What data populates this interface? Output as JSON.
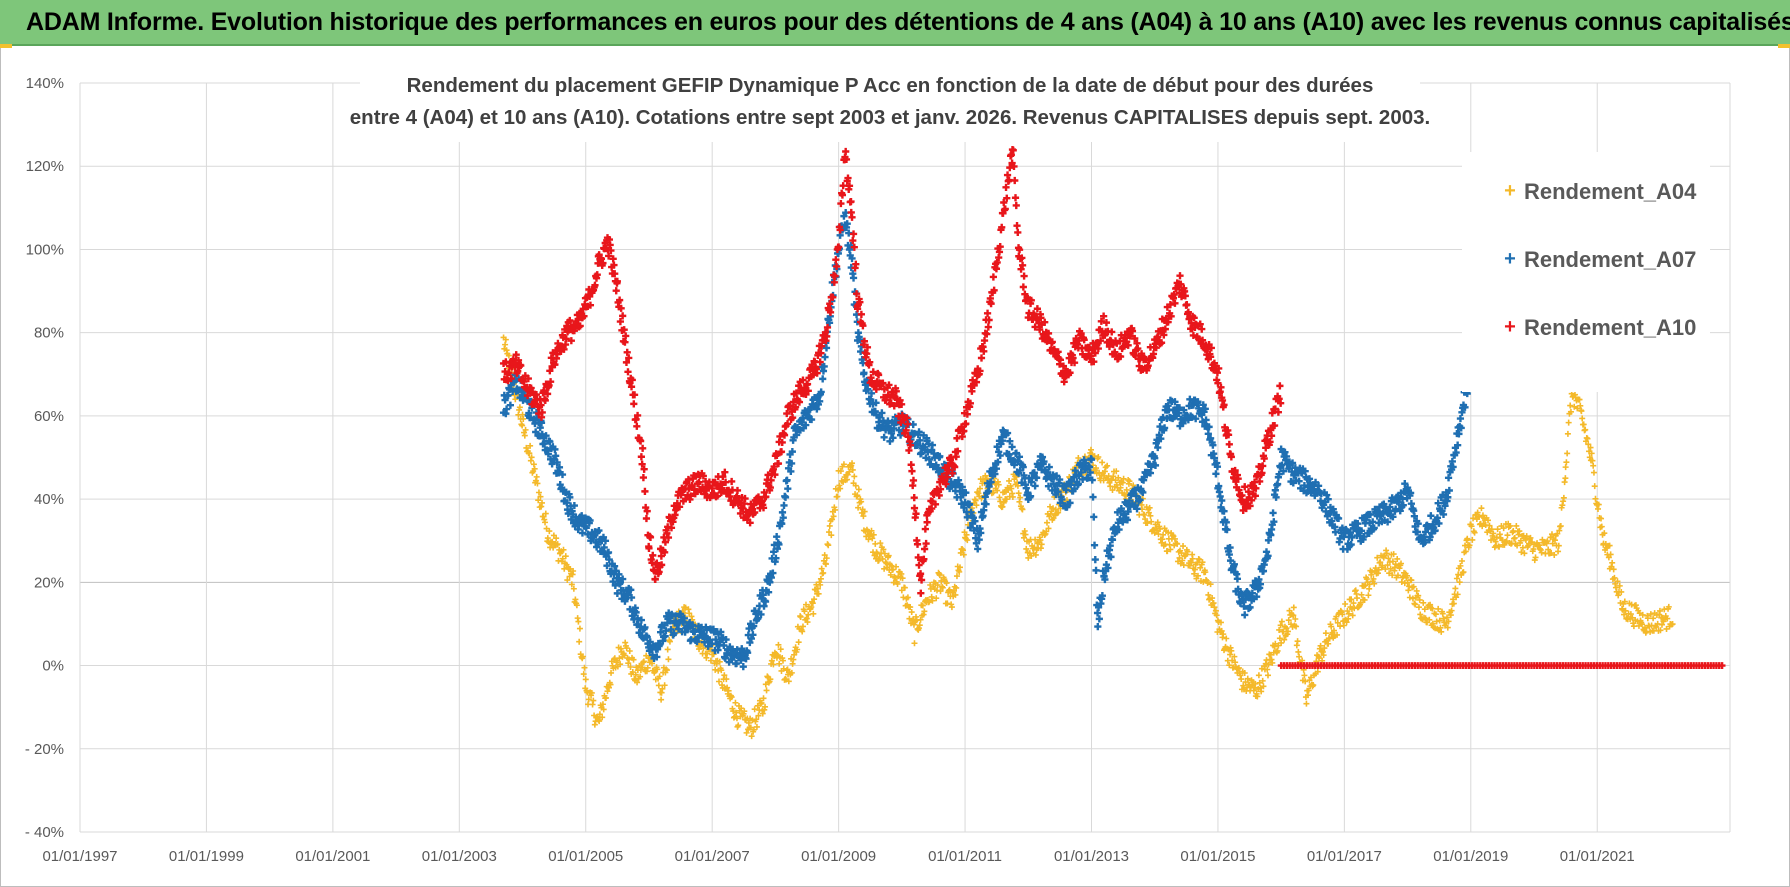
{
  "banner": {
    "title": "ADAM Informe. Evolution historique des performances en euros pour des détentions de 4 ans (A04) à 10 ans (A10) avec les revenus connus capitalisés"
  },
  "chart_data": {
    "type": "scatter",
    "title_line1": "Rendement du placement GEFIP Dynamique P Acc en fonction de la date de début pour des durées",
    "title_line2": "entre 4 (A04) et 10 ans (A10). Cotations entre sept 2003 et janv. 2026. Revenus CAPITALISES depuis sept. 2003.",
    "x_ticks": [
      "01/01/1997",
      "01/01/1999",
      "01/01/2001",
      "01/01/2003",
      "01/01/2005",
      "01/01/2007",
      "01/01/2009",
      "01/01/2011",
      "01/01/2013",
      "01/01/2015",
      "01/01/2017",
      "01/01/2019",
      "01/01/2021"
    ],
    "xlim": [
      1997.0,
      2023.1
    ],
    "y_ticks": [
      "140%",
      "120%",
      "100%",
      "80%",
      "60%",
      "40%",
      "20%",
      "0%",
      "- 20%",
      "- 40%"
    ],
    "ylim": [
      -40,
      140
    ],
    "legend_position": "top-right",
    "colors": {
      "A04": "#f4b92a",
      "A07": "#1f6fb2",
      "A10": "#e8161b",
      "grid": "#d9d9d9",
      "axis_text": "#595959",
      "title_text": "#404040"
    },
    "series": [
      {
        "name": "Rendement_A04",
        "key": "A04",
        "anchors": [
          [
            2003.7,
            78
          ],
          [
            2003.85,
            68
          ],
          [
            2004.0,
            58
          ],
          [
            2004.2,
            45
          ],
          [
            2004.4,
            32
          ],
          [
            2004.6,
            27
          ],
          [
            2004.8,
            20
          ],
          [
            2005.0,
            -5
          ],
          [
            2005.2,
            -14
          ],
          [
            2005.4,
            -2
          ],
          [
            2005.6,
            5
          ],
          [
            2005.8,
            -3
          ],
          [
            2006.0,
            2
          ],
          [
            2006.2,
            -6
          ],
          [
            2006.4,
            10
          ],
          [
            2006.6,
            12
          ],
          [
            2006.8,
            6
          ],
          [
            2007.0,
            3
          ],
          [
            2007.2,
            -5
          ],
          [
            2007.4,
            -12
          ],
          [
            2007.6,
            -15
          ],
          [
            2007.8,
            -10
          ],
          [
            2008.0,
            5
          ],
          [
            2008.2,
            -3
          ],
          [
            2008.4,
            10
          ],
          [
            2008.6,
            15
          ],
          [
            2008.8,
            25
          ],
          [
            2009.0,
            45
          ],
          [
            2009.2,
            47
          ],
          [
            2009.4,
            35
          ],
          [
            2009.6,
            28
          ],
          [
            2009.8,
            24
          ],
          [
            2010.0,
            20
          ],
          [
            2010.2,
            8
          ],
          [
            2010.4,
            16
          ],
          [
            2010.6,
            20
          ],
          [
            2010.8,
            15
          ],
          [
            2011.0,
            30
          ],
          [
            2011.2,
            42
          ],
          [
            2011.4,
            44
          ],
          [
            2011.6,
            40
          ],
          [
            2011.8,
            44
          ],
          [
            2012.0,
            28
          ],
          [
            2012.2,
            30
          ],
          [
            2012.4,
            38
          ],
          [
            2012.6,
            42
          ],
          [
            2012.8,
            48
          ],
          [
            2013.0,
            50
          ],
          [
            2013.2,
            46
          ],
          [
            2013.4,
            44
          ],
          [
            2013.6,
            42
          ],
          [
            2013.8,
            38
          ],
          [
            2014.0,
            34
          ],
          [
            2014.2,
            30
          ],
          [
            2014.4,
            27
          ],
          [
            2014.6,
            24
          ],
          [
            2014.8,
            22
          ],
          [
            2015.0,
            10
          ],
          [
            2015.2,
            2
          ],
          [
            2015.4,
            -4
          ],
          [
            2015.6,
            -6
          ],
          [
            2015.8,
            0
          ],
          [
            2016.0,
            8
          ],
          [
            2016.2,
            12
          ],
          [
            2016.4,
            -8
          ],
          [
            2016.6,
            2
          ],
          [
            2016.8,
            8
          ],
          [
            2017.0,
            12
          ],
          [
            2017.2,
            16
          ],
          [
            2017.4,
            20
          ],
          [
            2017.6,
            26
          ],
          [
            2017.8,
            24
          ],
          [
            2018.0,
            20
          ],
          [
            2018.2,
            14
          ],
          [
            2018.4,
            12
          ],
          [
            2018.6,
            10
          ],
          [
            2018.8,
            20
          ],
          [
            2019.0,
            32
          ],
          [
            2019.2,
            36
          ],
          [
            2019.4,
            30
          ],
          [
            2019.6,
            32
          ],
          [
            2019.8,
            30
          ],
          [
            2020.0,
            28
          ],
          [
            2020.2,
            28
          ],
          [
            2020.4,
            30
          ],
          [
            2020.5,
            48
          ],
          [
            2020.6,
            66
          ],
          [
            2020.75,
            60
          ],
          [
            2020.9,
            50
          ],
          [
            2021.0,
            40
          ],
          [
            2021.1,
            30
          ],
          [
            2021.2,
            26
          ],
          [
            2021.4,
            14
          ],
          [
            2021.6,
            12
          ],
          [
            2021.8,
            10
          ],
          [
            2022.0,
            11
          ],
          [
            2022.2,
            12
          ]
        ]
      },
      {
        "name": "Rendement_A07",
        "key": "A07",
        "anchors": [
          [
            2003.7,
            62
          ],
          [
            2003.9,
            68
          ],
          [
            2004.1,
            62
          ],
          [
            2004.3,
            56
          ],
          [
            2004.5,
            50
          ],
          [
            2004.7,
            40
          ],
          [
            2004.9,
            34
          ],
          [
            2005.1,
            32
          ],
          [
            2005.3,
            28
          ],
          [
            2005.5,
            20
          ],
          [
            2005.7,
            16
          ],
          [
            2005.9,
            8
          ],
          [
            2006.1,
            4
          ],
          [
            2006.3,
            10
          ],
          [
            2006.5,
            10
          ],
          [
            2006.7,
            8
          ],
          [
            2006.9,
            7
          ],
          [
            2007.1,
            6
          ],
          [
            2007.3,
            3
          ],
          [
            2007.5,
            2
          ],
          [
            2007.7,
            12
          ],
          [
            2007.9,
            20
          ],
          [
            2008.1,
            35
          ],
          [
            2008.3,
            55
          ],
          [
            2008.5,
            60
          ],
          [
            2008.7,
            65
          ],
          [
            2008.9,
            90
          ],
          [
            2009.0,
            100
          ],
          [
            2009.1,
            108
          ],
          [
            2009.2,
            98
          ],
          [
            2009.3,
            80
          ],
          [
            2009.4,
            70
          ],
          [
            2009.6,
            60
          ],
          [
            2009.8,
            56
          ],
          [
            2010.0,
            58
          ],
          [
            2010.2,
            55
          ],
          [
            2010.4,
            52
          ],
          [
            2010.6,
            48
          ],
          [
            2010.8,
            44
          ],
          [
            2011.0,
            40
          ],
          [
            2011.2,
            30
          ],
          [
            2011.4,
            45
          ],
          [
            2011.6,
            55
          ],
          [
            2011.8,
            50
          ],
          [
            2012.0,
            42
          ],
          [
            2012.2,
            48
          ],
          [
            2012.4,
            44
          ],
          [
            2012.6,
            40
          ],
          [
            2012.8,
            46
          ],
          [
            2013.0,
            48
          ],
          [
            2013.1,
            10
          ],
          [
            2013.2,
            22
          ],
          [
            2013.4,
            34
          ],
          [
            2013.6,
            38
          ],
          [
            2013.8,
            42
          ],
          [
            2014.0,
            50
          ],
          [
            2014.2,
            62
          ],
          [
            2014.4,
            60
          ],
          [
            2014.6,
            62
          ],
          [
            2014.8,
            60
          ],
          [
            2015.0,
            45
          ],
          [
            2015.2,
            25
          ],
          [
            2015.4,
            14
          ],
          [
            2015.6,
            18
          ],
          [
            2015.8,
            28
          ],
          [
            2016.0,
            50
          ],
          [
            2016.2,
            46
          ],
          [
            2016.4,
            44
          ],
          [
            2016.6,
            42
          ],
          [
            2016.8,
            36
          ],
          [
            2017.0,
            30
          ],
          [
            2017.2,
            32
          ],
          [
            2017.4,
            34
          ],
          [
            2017.6,
            36
          ],
          [
            2017.8,
            38
          ],
          [
            2018.0,
            42
          ],
          [
            2018.2,
            30
          ],
          [
            2018.4,
            34
          ],
          [
            2018.6,
            40
          ],
          [
            2018.8,
            56
          ],
          [
            2018.95,
            68
          ]
        ]
      },
      {
        "name": "Rendement_A10",
        "key": "A10",
        "anchors": [
          [
            2003.7,
            70
          ],
          [
            2003.9,
            72
          ],
          [
            2004.1,
            66
          ],
          [
            2004.3,
            62
          ],
          [
            2004.5,
            74
          ],
          [
            2004.7,
            80
          ],
          [
            2004.9,
            82
          ],
          [
            2005.05,
            88
          ],
          [
            2005.2,
            96
          ],
          [
            2005.35,
            102
          ],
          [
            2005.5,
            90
          ],
          [
            2005.7,
            70
          ],
          [
            2005.9,
            50
          ],
          [
            2006.0,
            30
          ],
          [
            2006.1,
            22
          ],
          [
            2006.2,
            26
          ],
          [
            2006.4,
            38
          ],
          [
            2006.6,
            42
          ],
          [
            2006.8,
            44
          ],
          [
            2007.0,
            42
          ],
          [
            2007.2,
            44
          ],
          [
            2007.4,
            40
          ],
          [
            2007.6,
            36
          ],
          [
            2007.8,
            40
          ],
          [
            2008.0,
            48
          ],
          [
            2008.2,
            60
          ],
          [
            2008.4,
            66
          ],
          [
            2008.6,
            70
          ],
          [
            2008.8,
            80
          ],
          [
            2009.0,
            100
          ],
          [
            2009.1,
            124
          ],
          [
            2009.2,
            110
          ],
          [
            2009.3,
            88
          ],
          [
            2009.5,
            70
          ],
          [
            2009.7,
            66
          ],
          [
            2009.9,
            64
          ],
          [
            2010.1,
            56
          ],
          [
            2010.2,
            40
          ],
          [
            2010.3,
            20
          ],
          [
            2010.4,
            34
          ],
          [
            2010.6,
            44
          ],
          [
            2010.8,
            48
          ],
          [
            2011.0,
            60
          ],
          [
            2011.2,
            70
          ],
          [
            2011.4,
            86
          ],
          [
            2011.6,
            108
          ],
          [
            2011.75,
            124
          ],
          [
            2011.85,
            100
          ],
          [
            2012.0,
            86
          ],
          [
            2012.2,
            82
          ],
          [
            2012.4,
            75
          ],
          [
            2012.6,
            70
          ],
          [
            2012.8,
            78
          ],
          [
            2013.0,
            74
          ],
          [
            2013.2,
            82
          ],
          [
            2013.4,
            75
          ],
          [
            2013.6,
            80
          ],
          [
            2013.8,
            72
          ],
          [
            2014.0,
            76
          ],
          [
            2014.2,
            84
          ],
          [
            2014.4,
            92
          ],
          [
            2014.6,
            82
          ],
          [
            2014.8,
            78
          ],
          [
            2015.0,
            70
          ],
          [
            2015.2,
            50
          ],
          [
            2015.4,
            40
          ],
          [
            2015.6,
            42
          ],
          [
            2015.8,
            55
          ],
          [
            2016.0,
            66
          ]
        ]
      },
      {
        "name": "zero_line",
        "key": "A10",
        "legend": false,
        "anchors": [
          [
            2016.0,
            0
          ],
          [
            2023.0,
            0
          ]
        ]
      }
    ],
    "legend": [
      "Rendement_A04",
      "Rendement_A07",
      "Rendement_A10"
    ]
  }
}
